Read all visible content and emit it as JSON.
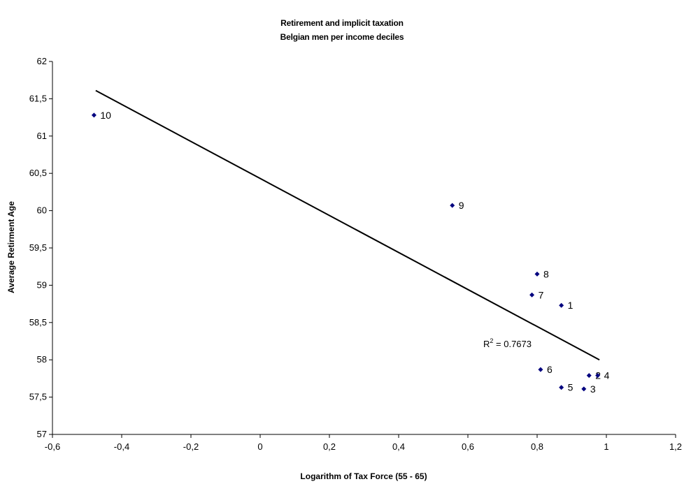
{
  "chart_data": {
    "type": "scatter",
    "title": "Retirement and implicit taxation",
    "subtitle": "Belgian men per income deciles",
    "xlabel": "Logarithm of Tax Force (55 - 65)",
    "ylabel": "Average Retirment Age",
    "xlim": [
      -0.6,
      1.2
    ],
    "ylim": [
      57,
      62
    ],
    "xticks": [
      "-0,6",
      "-0,4",
      "-0,2",
      "0",
      "0,2",
      "0,4",
      "0,6",
      "0,8",
      "1",
      "1,2"
    ],
    "yticks": [
      "57",
      "57,5",
      "58",
      "58,5",
      "59",
      "59,5",
      "60",
      "60,5",
      "61",
      "61,5",
      "62"
    ],
    "grid": false,
    "marker_color": "#00007F",
    "points": [
      {
        "label": "1",
        "x": 0.87,
        "y": 58.73
      },
      {
        "label": "2",
        "x": 0.95,
        "y": 57.79
      },
      {
        "label": "3",
        "x": 0.935,
        "y": 57.61
      },
      {
        "label": "4",
        "x": 0.975,
        "y": 57.79
      },
      {
        "label": "5",
        "x": 0.87,
        "y": 57.63
      },
      {
        "label": "6",
        "x": 0.81,
        "y": 57.87
      },
      {
        "label": "7",
        "x": 0.785,
        "y": 58.87
      },
      {
        "label": "8",
        "x": 0.8,
        "y": 59.15
      },
      {
        "label": "9",
        "x": 0.555,
        "y": 60.07
      },
      {
        "label": "10",
        "x": -0.48,
        "y": 61.28
      }
    ],
    "trendline": {
      "x": [
        -0.475,
        0.98
      ],
      "y": [
        61.61,
        58.0
      ],
      "r_squared": "0.7673"
    }
  }
}
